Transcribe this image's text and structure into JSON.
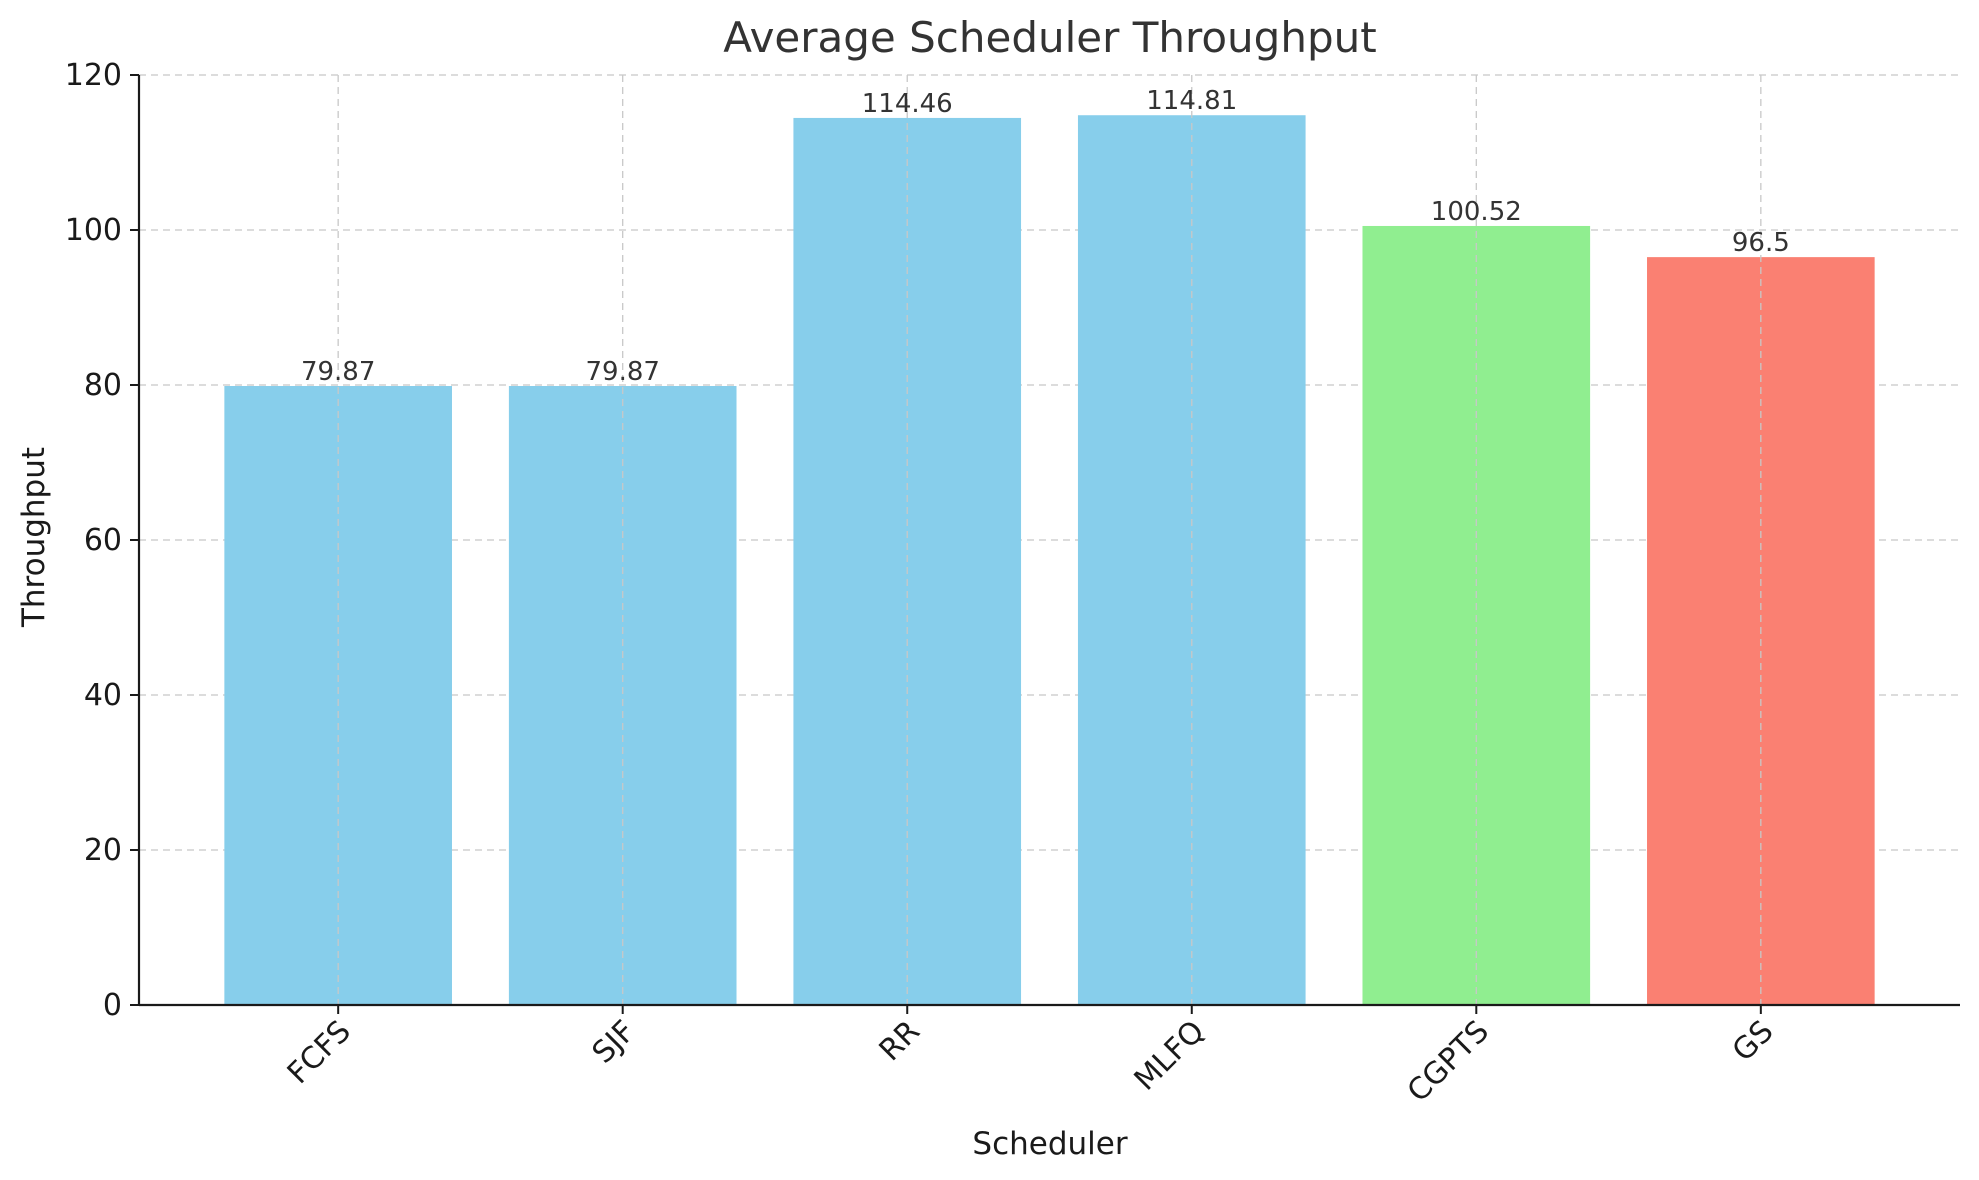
{
  "chart_data": {
    "type": "bar",
    "title": "Average Scheduler Throughput",
    "xlabel": "Scheduler",
    "ylabel": "Throughput",
    "categories": [
      "FCFS",
      "SJF",
      "RR",
      "MLFQ",
      "CGPTS",
      "GS"
    ],
    "values": [
      79.87,
      79.87,
      114.46,
      114.81,
      100.52,
      96.5
    ],
    "value_labels": [
      "79.87",
      "79.87",
      "114.46",
      "114.81",
      "100.52",
      "96.5"
    ],
    "colors": [
      "#87ceeb",
      "#87ceeb",
      "#87ceeb",
      "#87ceeb",
      "#90ee90",
      "#fa8072"
    ],
    "ylim": [
      0,
      120
    ],
    "yticks": [
      0,
      20,
      40,
      60,
      80,
      100,
      120
    ],
    "grid": true,
    "x_tick_rotation": "45 degrees"
  }
}
